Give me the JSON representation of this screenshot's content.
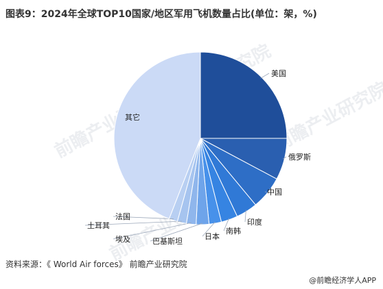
{
  "title": "图表9：2024年全球TOP10国家/地区军用飞机数量占比(单位：架，%)",
  "watermark_text": "前瞻产业研究院",
  "source": "资料来源：《 World Air forces》 前瞻产业研究院",
  "brand": "@前瞻经济学人APP",
  "colors": {
    "美国": "#1f4e9a",
    "俄罗斯": "#2a5fb0",
    "中国": "#2e6ec6",
    "印度": "#3079d6",
    "南韩": "#3684e2",
    "日本": "#4791ea",
    "巴基斯坦": "#6ea4ea",
    "埃及": "#8fb6ec",
    "土耳其": "#a6c4ef",
    "法国": "#b8cff2",
    "其它": "#cbdaf6"
  },
  "chart_data": {
    "type": "pie",
    "title": "图表9：2024年全球TOP10国家/地区军用飞机数量占比(单位：架，%)",
    "start_angle_deg": 0,
    "direction": "clockwise",
    "slices": [
      {
        "label": "美国",
        "value": 25.0
      },
      {
        "label": "俄罗斯",
        "value": 7.8
      },
      {
        "label": "中国",
        "value": 6.2
      },
      {
        "label": "印度",
        "value": 4.0
      },
      {
        "label": "南韩",
        "value": 3.1
      },
      {
        "label": "日本",
        "value": 2.3
      },
      {
        "label": "巴基斯坦",
        "value": 2.4
      },
      {
        "label": "埃及",
        "value": 1.8
      },
      {
        "label": "土耳其",
        "value": 1.7
      },
      {
        "label": "法国",
        "value": 1.6
      },
      {
        "label": "其它",
        "value": 44.1
      }
    ]
  }
}
